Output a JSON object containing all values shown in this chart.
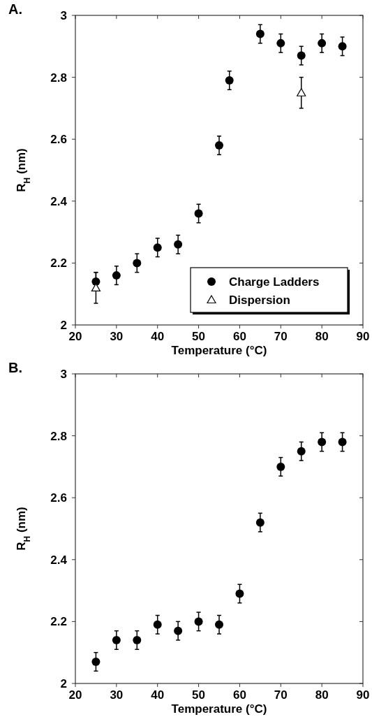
{
  "chart_data": [
    {
      "type": "scatter",
      "title": "A.",
      "xlabel": "Temperature (°C)",
      "ylabel": "R$_{H}$ (nm)",
      "xlim": [
        20,
        90
      ],
      "ylim": [
        2,
        3
      ],
      "xticks": [
        20,
        30,
        40,
        50,
        60,
        70,
        80,
        90
      ],
      "yticks": [
        2,
        2.2,
        2.4,
        2.6,
        2.8,
        3
      ],
      "legend": "bottom right",
      "grid": false,
      "series": [
        {
          "name": "Charge Ladders",
          "color": "#000000",
          "marker": "circle",
          "x": [
            25,
            30,
            35,
            40,
            45,
            50,
            55,
            57.5,
            65,
            70,
            75,
            80,
            85
          ],
          "values": [
            2.14,
            2.16,
            2.2,
            2.25,
            2.26,
            2.36,
            2.58,
            2.79,
            2.94,
            2.91,
            2.87,
            2.91,
            2.9
          ],
          "errors": [
            0.03,
            0.03,
            0.03,
            0.03,
            0.03,
            0.03,
            0.03,
            0.03,
            0.03,
            0.03,
            0.03,
            0.03,
            0.03
          ]
        },
        {
          "name": "Dispersion",
          "color": "#000000",
          "marker": "triangle",
          "x": [
            25,
            75
          ],
          "values": [
            2.12,
            2.75
          ],
          "errors": [
            0.05,
            0.05
          ]
        }
      ]
    },
    {
      "type": "scatter",
      "title": "B.",
      "xlabel": "Temperature (°C)",
      "ylabel": "R$_{H}$ (nm)",
      "xlim": [
        20,
        90
      ],
      "ylim": [
        2,
        3
      ],
      "xticks": [
        20,
        30,
        40,
        50,
        60,
        70,
        80,
        90
      ],
      "yticks": [
        2,
        2.2,
        2.4,
        2.6,
        2.8,
        3
      ],
      "grid": false,
      "series": [
        {
          "color": "#000000",
          "marker": "circle",
          "x": [
            25,
            30,
            35,
            40,
            45,
            50,
            55,
            60,
            65,
            70,
            75,
            80,
            85
          ],
          "values": [
            2.07,
            2.14,
            2.14,
            2.19,
            2.17,
            2.2,
            2.19,
            2.29,
            2.52,
            2.7,
            2.75,
            2.78,
            2.78
          ],
          "errors": [
            0.03,
            0.03,
            0.03,
            0.03,
            0.03,
            0.03,
            0.03,
            0.03,
            0.03,
            0.03,
            0.03,
            0.03,
            0.03
          ]
        }
      ]
    }
  ]
}
